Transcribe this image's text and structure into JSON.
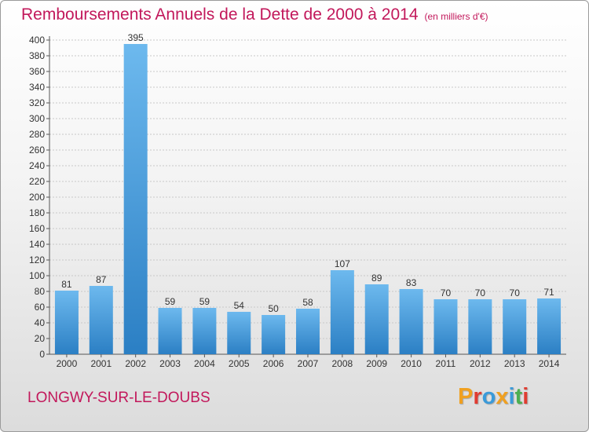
{
  "header": {
    "title": "Remboursements Annuels de la Dette de 2000 à 2014",
    "unit": "(en milliers d'€)"
  },
  "footer": {
    "town": "LONGWY-SUR-LE-DOUBS",
    "logo": "Proxiti",
    "logo_colors": [
      "#f0a020",
      "#e03c31",
      "#3a9ad9",
      "#f0a020",
      "#3a9ad9",
      "#4caf50",
      "#e03c31"
    ]
  },
  "colors": {
    "title": "#c2185b",
    "bar_light": "#6db9ee",
    "bar_dark": "#2b7fc4",
    "grid": "#c8c8c8"
  },
  "chart_data": {
    "type": "bar",
    "title": "Remboursements Annuels de la Dette de 2000 à 2014",
    "xlabel": "",
    "ylabel": "",
    "ylim": [
      0,
      400
    ],
    "yticks": [
      0,
      20,
      40,
      60,
      80,
      100,
      120,
      140,
      160,
      180,
      200,
      220,
      240,
      260,
      280,
      300,
      320,
      340,
      360,
      380,
      400
    ],
    "grid": true,
    "categories": [
      "2000",
      "2001",
      "2002",
      "2003",
      "2004",
      "2005",
      "2006",
      "2007",
      "2008",
      "2009",
      "2010",
      "2011",
      "2012",
      "2013",
      "2014"
    ],
    "values": [
      81,
      87,
      395,
      59,
      59,
      54,
      50,
      58,
      107,
      89,
      83,
      70,
      70,
      70,
      71
    ],
    "value_labels": [
      "81",
      "87",
      "395",
      "59",
      "59",
      "54",
      "50",
      "58",
      "107",
      "89",
      "83",
      "70",
      "70",
      "70",
      "71"
    ]
  }
}
